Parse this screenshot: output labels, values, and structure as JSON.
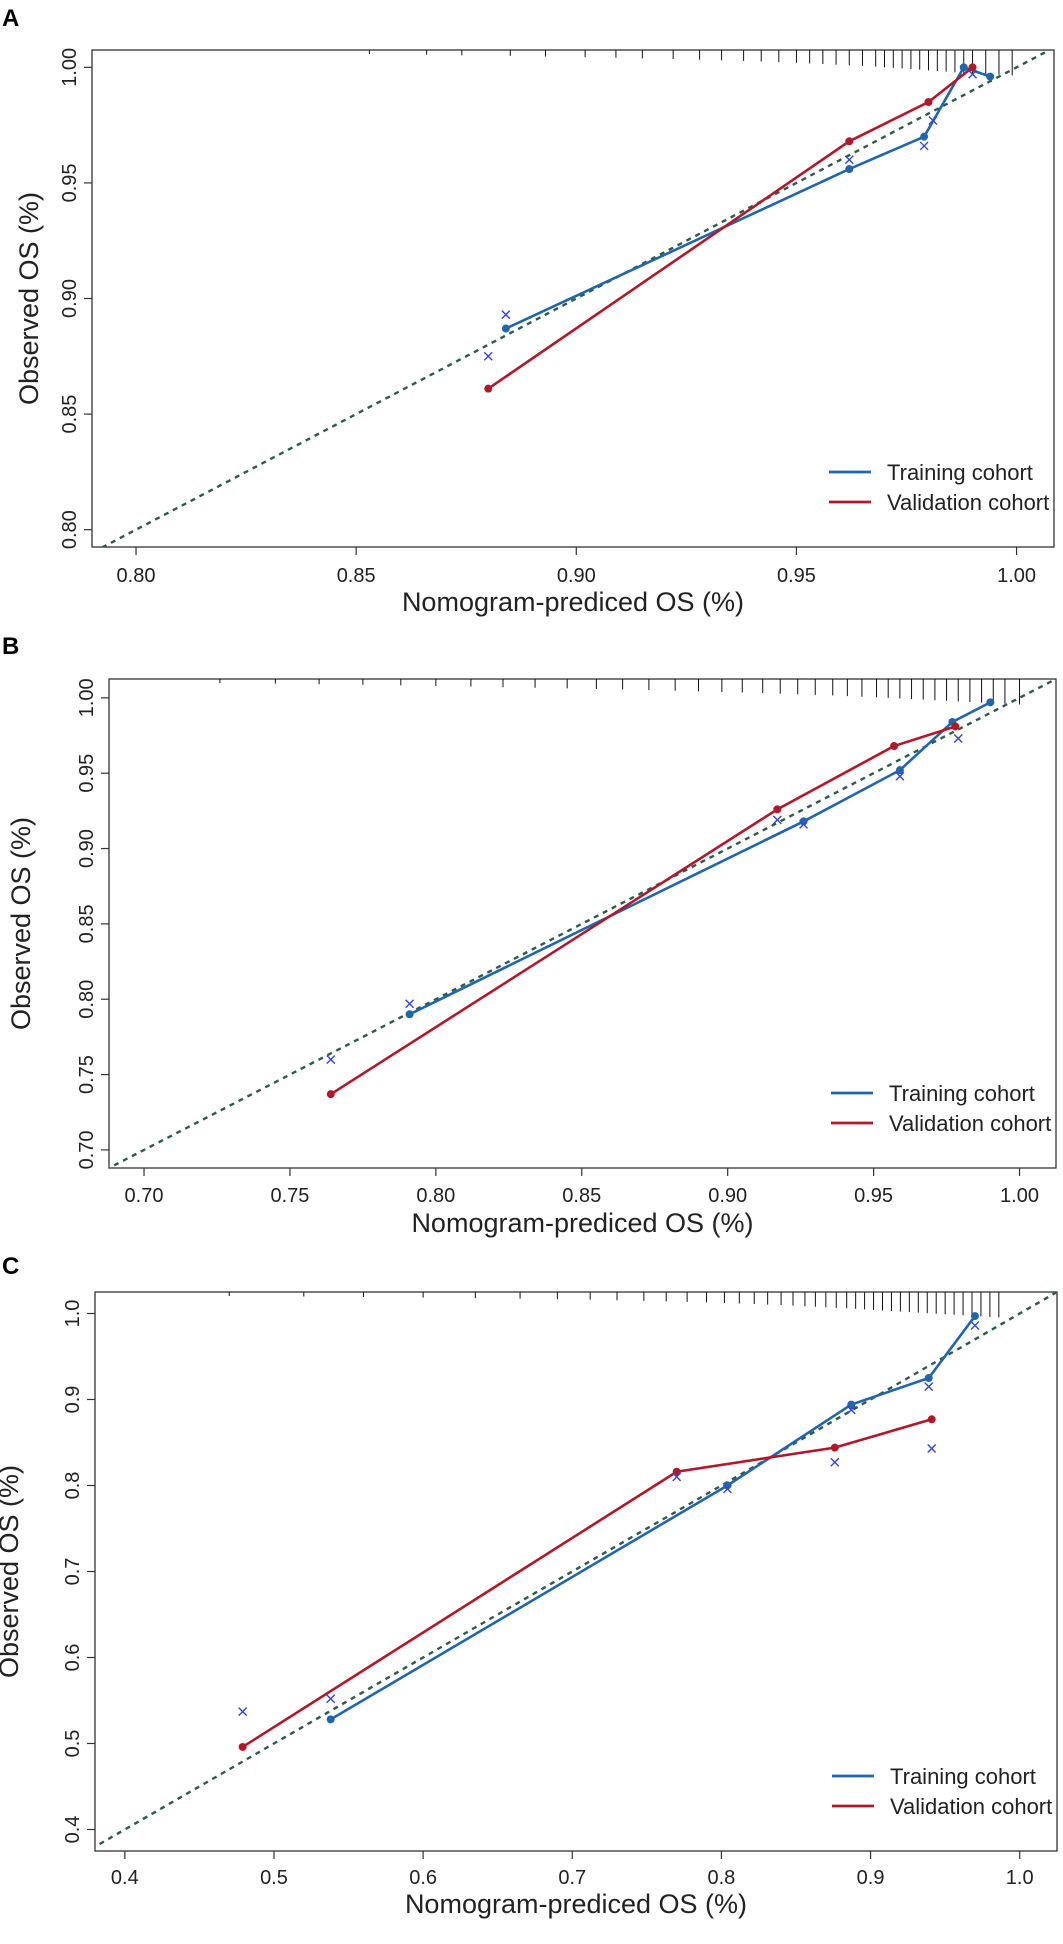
{
  "legend": {
    "training": "Training cohort",
    "validation": "Validation cohort"
  },
  "colors": {
    "training": "#2166ac",
    "validation": "#b2182b",
    "ideal": "#2f5a4a",
    "cross": "#3344dd",
    "frame": "#333333"
  },
  "chart_data": [
    {
      "panel_label": "A",
      "type": "line",
      "xlabel": "Nomogram-prediced OS (%)",
      "ylabel": "Observed OS (%)",
      "xlim": [
        0.79,
        1.0085
      ],
      "ylim": [
        0.7925,
        1.0075
      ],
      "xticks": [
        0.8,
        0.85,
        0.9,
        0.95,
        1.0
      ],
      "xtick_labels": [
        "0.80",
        "0.85",
        "0.90",
        "0.95",
        "1.00"
      ],
      "yticks": [
        0.8,
        0.85,
        0.9,
        0.95,
        1.0
      ],
      "ytick_labels": [
        "0.80",
        "0.85",
        "0.90",
        "0.95",
        "1.00"
      ],
      "series": [
        {
          "name": "Training cohort",
          "x": [
            0.884,
            0.962,
            0.979,
            0.988,
            0.994
          ],
          "y": [
            0.887,
            0.956,
            0.97,
            1.0,
            0.996
          ]
        },
        {
          "name": "Validation cohort",
          "x": [
            0.88,
            0.962,
            0.98,
            0.99
          ],
          "y": [
            0.861,
            0.968,
            0.985,
            1.0
          ]
        }
      ],
      "bias_corrected": {
        "x": [
          0.88,
          0.884,
          0.962,
          0.979,
          0.981,
          0.99
        ],
        "y": [
          0.875,
          0.893,
          0.96,
          0.966,
          0.977,
          0.997
        ]
      },
      "rug": [
        0.853,
        0.866,
        0.874,
        0.885,
        0.893,
        0.902,
        0.909,
        0.915,
        0.922,
        0.928,
        0.933,
        0.938,
        0.942,
        0.946,
        0.95,
        0.953,
        0.956,
        0.959,
        0.962,
        0.965,
        0.968,
        0.97,
        0.972,
        0.974,
        0.976,
        0.978,
        0.98,
        0.982,
        0.984,
        0.986,
        0.988,
        0.99,
        0.993,
        0.996,
        0.999
      ]
    },
    {
      "panel_label": "B",
      "type": "line",
      "xlabel": "Nomogram-prediced OS (%)",
      "ylabel": "Observed OS (%)",
      "xlim": [
        0.688,
        1.0125
      ],
      "ylim": [
        0.688,
        1.0125
      ],
      "xticks": [
        0.7,
        0.75,
        0.8,
        0.85,
        0.9,
        0.95,
        1.0
      ],
      "xtick_labels": [
        "0.70",
        "0.75",
        "0.80",
        "0.85",
        "0.90",
        "0.95",
        "1.00"
      ],
      "yticks": [
        0.7,
        0.75,
        0.8,
        0.85,
        0.9,
        0.95,
        1.0
      ],
      "ytick_labels": [
        "0.70",
        "0.75",
        "0.80",
        "0.85",
        "0.90",
        "0.95",
        "1.00"
      ],
      "series": [
        {
          "name": "Training cohort",
          "x": [
            0.791,
            0.926,
            0.959,
            0.977,
            0.99
          ],
          "y": [
            0.79,
            0.918,
            0.952,
            0.984,
            0.997
          ]
        },
        {
          "name": "Validation cohort",
          "x": [
            0.764,
            0.917,
            0.957,
            0.978
          ],
          "y": [
            0.737,
            0.926,
            0.968,
            0.981
          ]
        }
      ],
      "bias_corrected": {
        "x": [
          0.764,
          0.791,
          0.917,
          0.926,
          0.959,
          0.979
        ],
        "y": [
          0.76,
          0.797,
          0.919,
          0.916,
          0.948,
          0.973
        ]
      },
      "rug": [
        0.726,
        0.745,
        0.76,
        0.775,
        0.788,
        0.8,
        0.812,
        0.823,
        0.834,
        0.845,
        0.855,
        0.864,
        0.873,
        0.882,
        0.89,
        0.898,
        0.905,
        0.912,
        0.918,
        0.924,
        0.93,
        0.936,
        0.941,
        0.946,
        0.951,
        0.955,
        0.959,
        0.963,
        0.967,
        0.971,
        0.975,
        0.979,
        0.983,
        0.987,
        0.991,
        0.995,
        1.0
      ]
    },
    {
      "panel_label": "C",
      "type": "line",
      "xlabel": "Nomogram-prediced OS (%)",
      "ylabel": "Observed OS (%)",
      "xlim": [
        0.38,
        1.025
      ],
      "ylim": [
        0.375,
        1.025
      ],
      "xticks": [
        0.4,
        0.5,
        0.6,
        0.7,
        0.8,
        0.9,
        1.0
      ],
      "xtick_labels": [
        "0.4",
        "0.5",
        "0.6",
        "0.7",
        "0.8",
        "0.9",
        "1.0"
      ],
      "yticks": [
        0.4,
        0.5,
        0.6,
        0.7,
        0.8,
        0.9,
        1.0
      ],
      "ytick_labels": [
        "0.4",
        "0.5",
        "0.6",
        "0.7",
        "0.8",
        "0.9",
        "1.0"
      ],
      "series": [
        {
          "name": "Training cohort",
          "x": [
            0.538,
            0.804,
            0.887,
            0.939,
            0.97
          ],
          "y": [
            0.528,
            0.8,
            0.894,
            0.925,
            0.997
          ]
        },
        {
          "name": "Validation cohort",
          "x": [
            0.479,
            0.77,
            0.876,
            0.941
          ],
          "y": [
            0.496,
            0.816,
            0.844,
            0.877
          ]
        }
      ],
      "bias_corrected": {
        "x": [
          0.479,
          0.538,
          0.77,
          0.804,
          0.876,
          0.887,
          0.939,
          0.941,
          0.97
        ],
        "y": [
          0.537,
          0.552,
          0.81,
          0.796,
          0.827,
          0.888,
          0.915,
          0.843,
          0.986
        ]
      },
      "rug": [
        0.47,
        0.52,
        0.56,
        0.6,
        0.635,
        0.665,
        0.69,
        0.712,
        0.73,
        0.748,
        0.763,
        0.777,
        0.79,
        0.802,
        0.812,
        0.822,
        0.831,
        0.84,
        0.848,
        0.856,
        0.863,
        0.87,
        0.877,
        0.884,
        0.89,
        0.896,
        0.902,
        0.908,
        0.914,
        0.92,
        0.926,
        0.932,
        0.938,
        0.944,
        0.95,
        0.956,
        0.962,
        0.968,
        0.974,
        0.98,
        0.986
      ]
    }
  ]
}
